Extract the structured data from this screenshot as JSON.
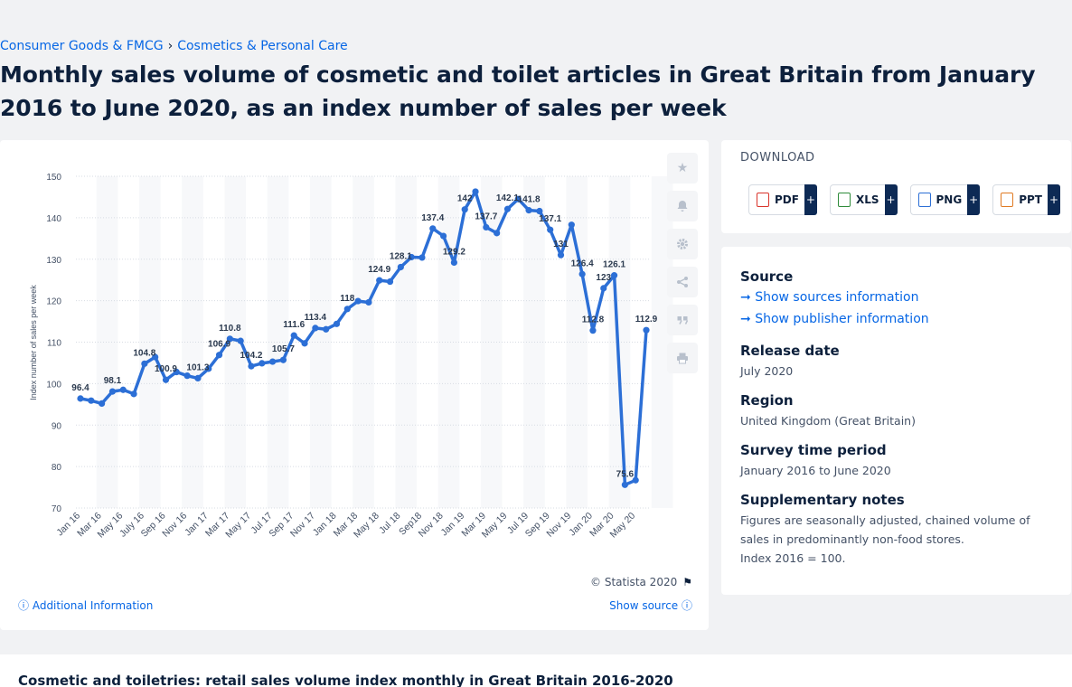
{
  "breadcrumb": {
    "item1": "Consumer Goods & FMCG",
    "sep": "›",
    "item2": "Cosmetics & Personal Care"
  },
  "title": "Monthly sales volume of cosmetic and toilet articles in Great Britain from January 2016 to June 2020, as an index number of sales per week",
  "chart_data": {
    "type": "line",
    "ylabel": "Index number of sales per week",
    "ylim": [
      70,
      150
    ],
    "yticks": [
      70,
      80,
      90,
      100,
      110,
      120,
      130,
      140,
      150
    ],
    "grid": true,
    "color": "#2c6fd6",
    "x_tick_labels": [
      "Jan 16",
      "Mar 16",
      "May 16",
      "July 16",
      "Sep 16",
      "Nov 16",
      "Jan 17",
      "Mar 17",
      "May 17",
      "Jul 17",
      "Sep 17",
      "Nov 17",
      "Jan 18",
      "Mar 18",
      "May 18",
      "Jul 18",
      "Sep18",
      "Nov 18",
      "Jan 19",
      "Mar 19",
      "May 19",
      "Jul 19",
      "Sep 19",
      "Nov 19",
      "Jan 20",
      "Mar 20",
      "May 20"
    ],
    "categories": [
      "Jan 16",
      "Feb 16",
      "Mar 16",
      "Apr 16",
      "May 16",
      "Jun 16",
      "July 16",
      "Aug 16",
      "Sep 16",
      "Oct 16",
      "Nov 16",
      "Dec 16",
      "Jan 17",
      "Feb 17",
      "Mar 17",
      "Apr 17",
      "May 17",
      "Jun 17",
      "Jul 17",
      "Aug 17",
      "Sep 17",
      "Oct 17",
      "Nov 17",
      "Dec 17",
      "Jan 18",
      "Feb 18",
      "Mar 18",
      "Apr 18",
      "May 18",
      "Jun 18",
      "Jul 18",
      "Aug 18",
      "Sep18",
      "Oct 18",
      "Nov 18",
      "Dec 18",
      "Jan 19",
      "Feb 19",
      "Mar 19",
      "Apr 19",
      "May 19",
      "Jun 19",
      "Jul 19",
      "Aug 19",
      "Sep 19",
      "Oct 19",
      "Nov 19",
      "Dec 19",
      "Jan 20",
      "Feb 20",
      "Mar 20",
      "Apr 20",
      "May 20",
      "Jun 20"
    ],
    "values": [
      96.4,
      95.9,
      95.2,
      98.1,
      98.5,
      97.5,
      104.8,
      106.4,
      100.9,
      102.8,
      101.9,
      101.3,
      103.6,
      106.9,
      110.8,
      110.3,
      104.2,
      104.9,
      105.3,
      105.7,
      111.6,
      109.7,
      113.4,
      113.1,
      114.4,
      118.0,
      119.9,
      119.6,
      124.9,
      124.6,
      128.1,
      130.5,
      130.4,
      137.4,
      135.6,
      129.2,
      142.0,
      146.3,
      137.7,
      136.3,
      142.1,
      144.5,
      141.8,
      141.6,
      137.1,
      131.0,
      138.3,
      126.4,
      112.8,
      123.0,
      126.1,
      75.6,
      76.7,
      112.9
    ],
    "data_labels": [
      {
        "i": 0,
        "text": "96.4"
      },
      {
        "i": 3,
        "text": "98.1"
      },
      {
        "i": 6,
        "text": "104.8"
      },
      {
        "i": 8,
        "text": "100.9"
      },
      {
        "i": 11,
        "text": "101.3"
      },
      {
        "i": 13,
        "text": "106.9"
      },
      {
        "i": 14,
        "text": "110.8"
      },
      {
        "i": 16,
        "text": "104.2"
      },
      {
        "i": 19,
        "text": "105.7"
      },
      {
        "i": 20,
        "text": "111.6"
      },
      {
        "i": 22,
        "text": "113.4"
      },
      {
        "i": 25,
        "text": "118"
      },
      {
        "i": 28,
        "text": "124.9"
      },
      {
        "i": 30,
        "text": "128.1"
      },
      {
        "i": 33,
        "text": "137.4"
      },
      {
        "i": 35,
        "text": "129.2"
      },
      {
        "i": 36,
        "text": "142"
      },
      {
        "i": 38,
        "text": "137.7"
      },
      {
        "i": 40,
        "text": "142.1"
      },
      {
        "i": 42,
        "text": "141.8"
      },
      {
        "i": 44,
        "text": "137.1"
      },
      {
        "i": 45,
        "text": "131"
      },
      {
        "i": 47,
        "text": "126.4"
      },
      {
        "i": 48,
        "text": "112.8"
      },
      {
        "i": 49,
        "text": "123"
      },
      {
        "i": 50,
        "text": "126.1"
      },
      {
        "i": 51,
        "text": "75.6"
      },
      {
        "i": 53,
        "text": "112.9"
      }
    ]
  },
  "chart_footer": {
    "copyright": "© Statista 2020",
    "additional_info": "Additional Information",
    "show_source": "Show source"
  },
  "download": {
    "title": "DOWNLOAD",
    "buttons": [
      {
        "label": "PDF",
        "color": "#d9342b"
      },
      {
        "label": "XLS",
        "color": "#2e8b3a"
      },
      {
        "label": "PNG",
        "color": "#2c6fd6"
      },
      {
        "label": "PPT",
        "color": "#e07a22"
      }
    ],
    "plus": "+"
  },
  "info": {
    "source_h": "Source",
    "show_sources": "Show sources information",
    "show_publisher": "Show publisher information",
    "release_h": "Release date",
    "release_v": "July 2020",
    "region_h": "Region",
    "region_v": "United Kingdom (Great Britain)",
    "period_h": "Survey time period",
    "period_v": "January 2016 to June 2020",
    "notes_h": "Supplementary notes",
    "notes_v1": "Figures are seasonally adjusted, chained volume of sales in predominantly non-food stores.",
    "notes_v2": "Index 2016 = 100."
  },
  "bottom": {
    "title": "Cosmetic and toiletries: retail sales volume index monthly in Great Britain 2016-2020"
  }
}
